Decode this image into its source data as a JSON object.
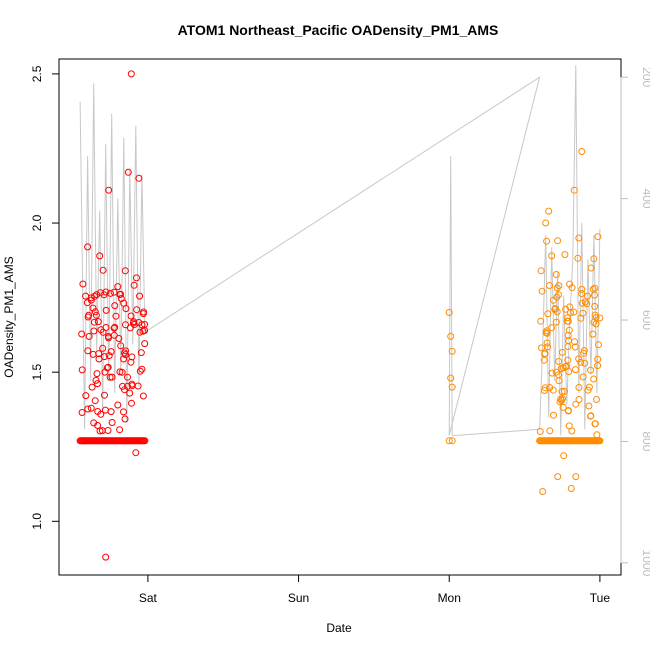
{
  "chart_data": {
    "type": "scatter",
    "title": "ATOM1 Northeast_Pacific OADensity_PM1_AMS",
    "xlabel": "Date",
    "ylabel": "OADensity_PM1_AMS",
    "x_axis": {
      "unit": "day",
      "ticks": [
        {
          "value": 1,
          "label": "Sat"
        },
        {
          "value": 2,
          "label": "Sun"
        },
        {
          "value": 3,
          "label": "Mon"
        },
        {
          "value": 4,
          "label": "Tue"
        }
      ],
      "lim": [
        0.41,
        4.14
      ]
    },
    "y_axis": {
      "ticks": [
        1.0,
        1.5,
        2.0,
        2.5
      ],
      "lim": [
        0.82,
        2.55
      ]
    },
    "y2_axis": {
      "ticks": [
        200,
        400,
        600,
        800,
        1000
      ],
      "lim": [
        1020,
        170
      ],
      "reversed": true,
      "color": "#bdbdbd"
    },
    "grid": false,
    "series": [
      {
        "color": "#ff0000",
        "pattern": "dense",
        "x_range": [
          0.55,
          0.98
        ],
        "points": [
          [
            0.58,
            1.27
          ],
          [
            0.6,
            1.92
          ],
          [
            0.61,
            1.62
          ],
          [
            0.63,
            1.45
          ],
          [
            0.64,
            1.33
          ],
          [
            0.66,
            1.76
          ],
          [
            0.68,
            1.89
          ],
          [
            0.7,
            1.58
          ],
          [
            0.72,
            0.88
          ],
          [
            0.74,
            2.11
          ],
          [
            0.78,
            1.65
          ],
          [
            0.8,
            1.39
          ],
          [
            0.85,
            1.84
          ],
          [
            0.87,
            2.17
          ],
          [
            0.89,
            2.5
          ],
          [
            0.91,
            1.66
          ],
          [
            0.94,
            2.15
          ],
          [
            0.96,
            1.51
          ],
          [
            0.97,
            1.42
          ],
          [
            0.92,
            1.23
          ]
        ]
      },
      {
        "color": "#ff8c00",
        "pattern": "sparse",
        "x_range": [
          2.99,
          3.03
        ],
        "points": [
          [
            3.0,
            1.7
          ],
          [
            3.01,
            1.62
          ],
          [
            3.02,
            1.57
          ],
          [
            3.01,
            1.48
          ],
          [
            3.02,
            1.45
          ],
          [
            3.0,
            1.27
          ],
          [
            3.02,
            1.27
          ]
        ]
      },
      {
        "color": "#ff8c00",
        "pattern": "dense",
        "x_range": [
          3.6,
          4.0
        ],
        "points": [
          [
            3.61,
            1.84
          ],
          [
            3.63,
            1.54
          ],
          [
            3.64,
            2.0
          ],
          [
            3.66,
            2.04
          ],
          [
            3.68,
            1.89
          ],
          [
            3.7,
            1.71
          ],
          [
            3.72,
            1.15
          ],
          [
            3.74,
            1.41
          ],
          [
            3.76,
            1.22
          ],
          [
            3.79,
            1.37
          ],
          [
            3.81,
            1.11
          ],
          [
            3.83,
            2.11
          ],
          [
            3.86,
            1.95
          ],
          [
            3.88,
            2.24
          ],
          [
            3.9,
            1.53
          ],
          [
            3.93,
            1.45
          ],
          [
            3.96,
            1.88
          ],
          [
            3.98,
            1.29
          ],
          [
            3.84,
            1.15
          ],
          [
            3.62,
            1.1
          ]
        ]
      }
    ],
    "line_series": {
      "color": "#c8c8c8",
      "y_axis": "y2",
      "x": [
        0.55,
        0.58,
        0.6,
        0.62,
        0.64,
        0.66,
        0.68,
        0.7,
        0.72,
        0.74,
        0.76,
        0.78,
        0.8,
        0.82,
        0.84,
        0.86,
        0.88,
        0.9,
        0.92,
        0.94,
        0.96,
        0.98,
        3.6,
        3.0,
        3.01,
        3.02,
        3.05,
        3.6,
        3.62,
        3.64,
        3.66,
        3.68,
        3.7,
        3.72,
        3.74,
        3.76,
        3.78,
        3.8,
        3.82,
        3.84,
        3.86,
        3.88,
        3.9,
        3.92,
        3.94,
        3.96,
        3.98,
        4.0
      ],
      "y": [
        240,
        780,
        330,
        700,
        210,
        650,
        420,
        750,
        310,
        700,
        260,
        720,
        400,
        690,
        300,
        770,
        350,
        640,
        280,
        710,
        360,
        620,
        200,
        790,
        330,
        790,
        790,
        780,
        640,
        460,
        760,
        480,
        700,
        520,
        790,
        560,
        740,
        600,
        500,
        180,
        720,
        440,
        780,
        500,
        690,
        460,
        720,
        450
      ]
    }
  }
}
